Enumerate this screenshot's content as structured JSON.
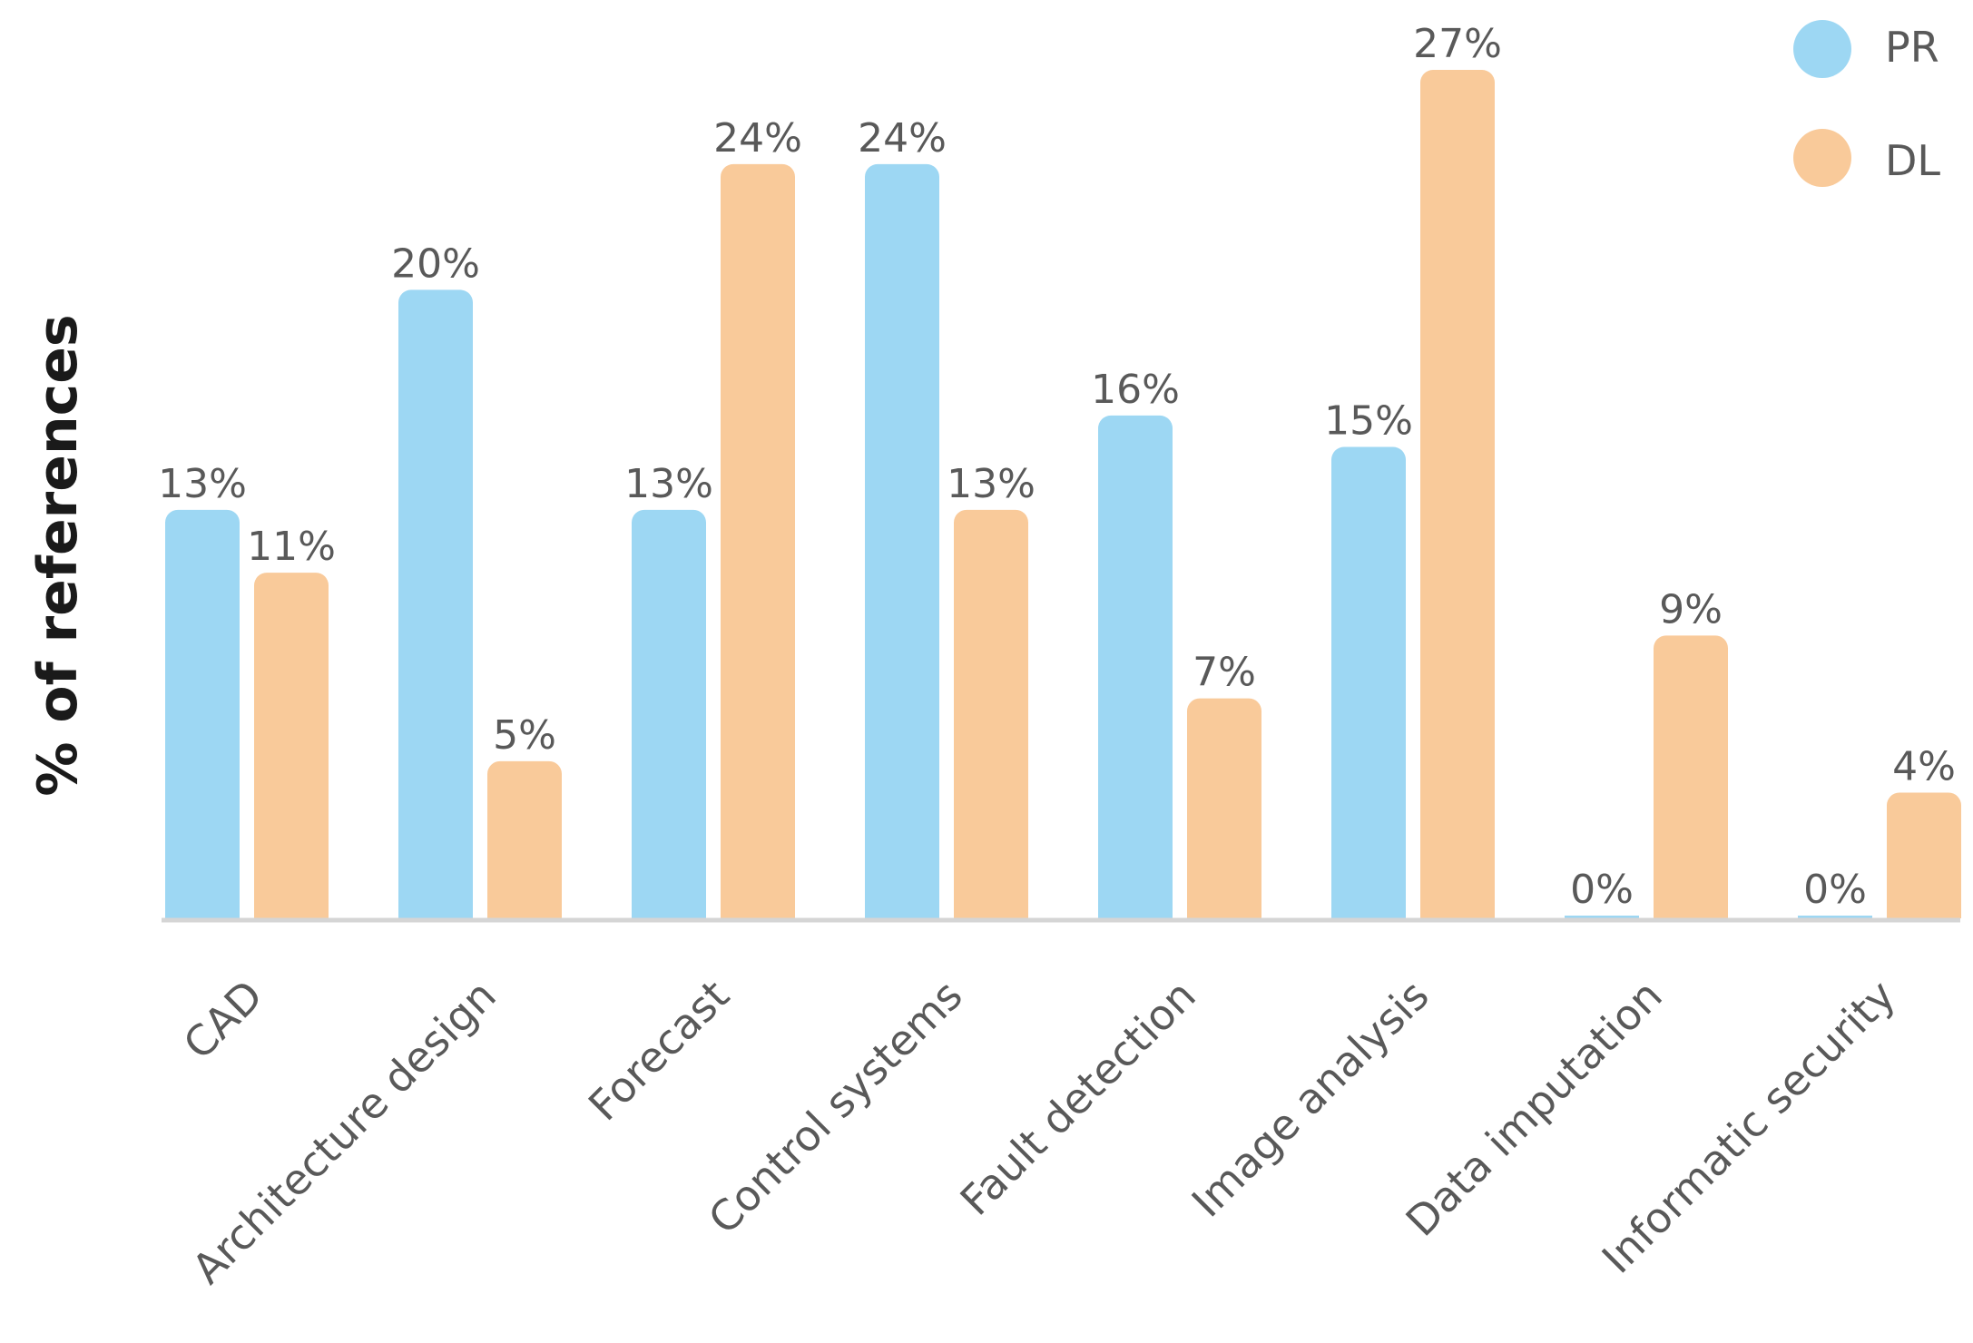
{
  "chart_data": {
    "type": "bar",
    "title": "",
    "xlabel": "",
    "ylabel": "% of references",
    "ylim": [
      0,
      27
    ],
    "grid": false,
    "legend_position": "top-right",
    "categories": [
      "CAD",
      "Architecture design",
      "Forecast",
      "Control systems",
      "Fault detection",
      "Image analysis",
      "Data imputation",
      "Informatic security"
    ],
    "series": [
      {
        "name": "PR",
        "color": "#9DD7F3",
        "values": [
          13,
          20,
          13,
          24,
          16,
          15,
          0,
          0
        ],
        "labels": [
          "13%",
          "20%",
          "13%",
          "24%",
          "16%",
          "15%",
          "0%",
          "0%"
        ]
      },
      {
        "name": "DL",
        "color": "#F9CA9A",
        "values": [
          11,
          5,
          24,
          13,
          7,
          27,
          9,
          4
        ],
        "labels": [
          "11%",
          "5%",
          "24%",
          "13%",
          "7%",
          "27%",
          "9%",
          "4%"
        ]
      }
    ]
  }
}
